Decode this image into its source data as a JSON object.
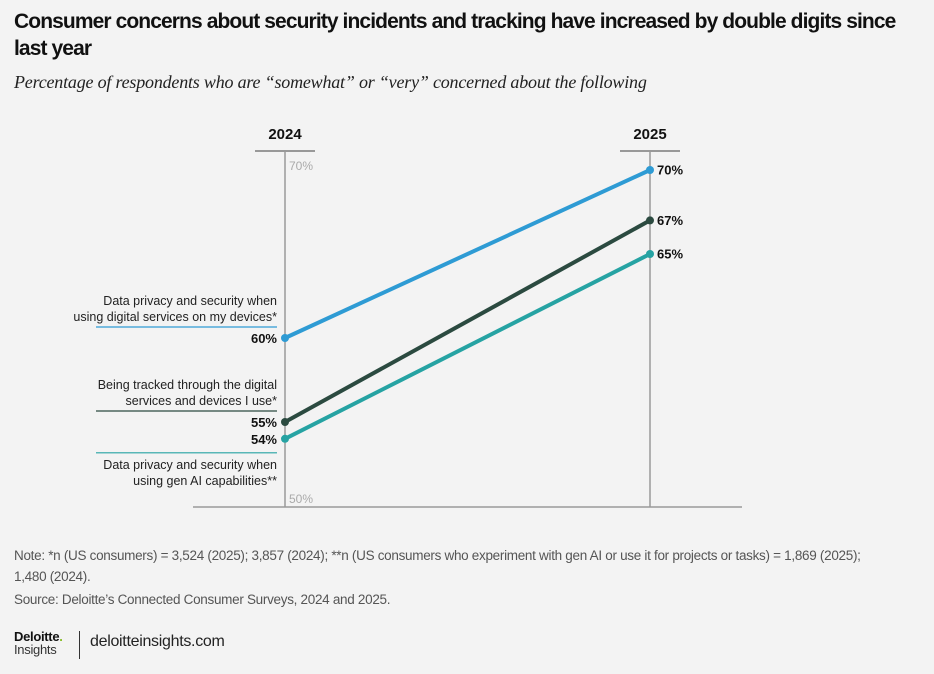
{
  "header": {
    "title": "Consumer concerns about security incidents and tracking have increased by double digits since last year",
    "subtitle": "Percentage of respondents who are “somewhat” or “very” concerned about the following"
  },
  "chart_data": {
    "type": "line",
    "title": "Consumer concerns about security incidents and tracking have increased by double digits since last year",
    "subtitle": "Percentage of respondents who are “somewhat” or “very” concerned about the following",
    "x": [
      "2024",
      "2025"
    ],
    "ylim": [
      50,
      70
    ],
    "y_ticks": [
      "70%",
      "50%"
    ],
    "grid": false,
    "legend": "inline-left",
    "series": [
      {
        "name": "Data privacy and security when using digital services on my devices*",
        "label_lines": [
          "Data privacy and security when",
          "using digital services on my devices*"
        ],
        "values": [
          60,
          70
        ],
        "value_labels": [
          "60%",
          "70%"
        ],
        "color": "#2e9bd4"
      },
      {
        "name": "Being tracked through the digital services and devices I use*",
        "label_lines": [
          "Being tracked through the digital",
          "services and devices I use*"
        ],
        "values": [
          55,
          67
        ],
        "value_labels": [
          "55%",
          "67%"
        ],
        "color": "#2b4a40"
      },
      {
        "name": "Data privacy and security when using gen AI capabilities**",
        "label_lines": [
          "Data privacy and security when",
          "using gen AI capabilities**"
        ],
        "values": [
          54,
          65
        ],
        "value_labels": [
          "54%",
          "65%"
        ],
        "color": "#26a3a3"
      }
    ]
  },
  "footer": {
    "note_line1": "Note: *n (US consumers) = 3,524 (2025); 3,857 (2024); **n (US consumers who experiment with gen AI or use it for projects or tasks) = 1,869 (2025);",
    "note_line2": "1,480 (2024).",
    "source": "Source: Deloitte’s Connected Consumer Surveys, 2024 and 2025.",
    "logo_brand": "Deloitte",
    "logo_dot": ".",
    "logo_sub": "Insights",
    "site": "deloitteinsights.com"
  }
}
